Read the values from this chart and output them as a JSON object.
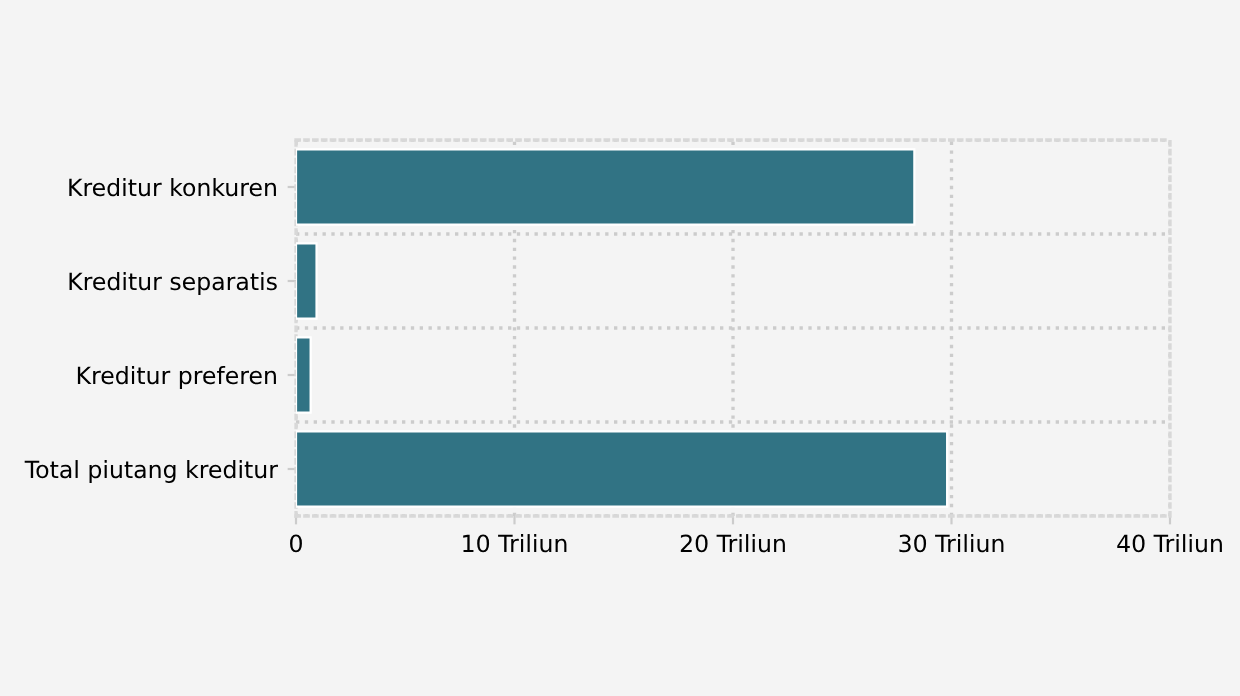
{
  "chart_data": {
    "type": "bar",
    "orientation": "horizontal",
    "categories": [
      "Kreditur konkuren",
      "Kreditur separatis",
      "Kreditur preferen",
      "Total piutang kreditur"
    ],
    "values": [
      28.3,
      0.94,
      0.67,
      29.8
    ],
    "color": "#317384",
    "xlim": [
      0,
      40
    ],
    "xticks": [
      0,
      {
        "value": 10,
        "label": "10 Triliun"
      },
      {
        "value": 20,
        "label": "20 Triliun"
      },
      {
        "value": 30,
        "label": "30 Triliun"
      },
      {
        "value": 40,
        "label": "40 Triliun"
      }
    ],
    "grid": true
  }
}
